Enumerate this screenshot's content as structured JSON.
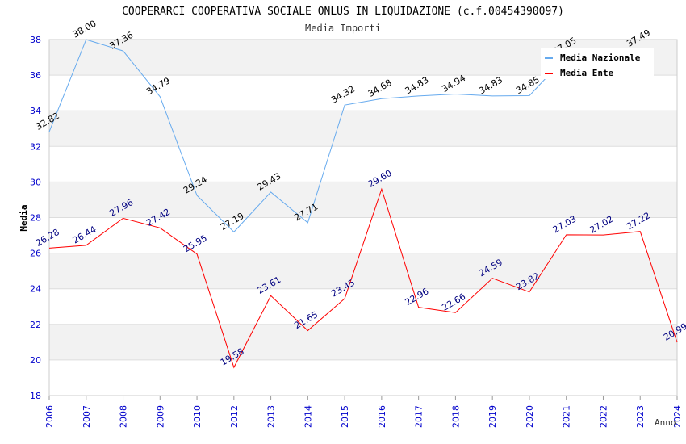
{
  "chart_data": {
    "type": "line",
    "title": "COOPERARCI COOPERATIVA SOCIALE ONLUS IN LIQUIDAZIONE (c.f.00454390097)",
    "subtitle": "Media Importi",
    "xlabel": "Anno",
    "ylabel": "Media",
    "ylim": [
      18,
      38
    ],
    "yticks": [
      "18",
      "20",
      "22",
      "24",
      "26",
      "28",
      "30",
      "32",
      "34",
      "36",
      "38"
    ],
    "x": [
      "2006",
      "2007",
      "2008",
      "2009",
      "2010",
      "2012",
      "2013",
      "2014",
      "2015",
      "2016",
      "2017",
      "2018",
      "2019",
      "2020",
      "2021",
      "2022",
      "2023",
      "2024"
    ],
    "legend_position": "top-right",
    "series": [
      {
        "name": "Media Nazionale",
        "color": "#66aaee",
        "label_color": "#000000",
        "values": [
          32.82,
          38.0,
          37.36,
          34.79,
          29.24,
          27.19,
          29.43,
          27.71,
          34.32,
          34.68,
          34.83,
          34.94,
          34.83,
          34.85,
          37.05,
          37.3,
          37.49,
          null
        ],
        "labels": [
          "32.82",
          "38.00",
          "37.36",
          "34.79",
          "29.24",
          "27.19",
          "29.43",
          "27.71",
          "34.32",
          "34.68",
          "34.83",
          "34.94",
          "34.83",
          "34.85",
          "37.05",
          "",
          "37.49",
          ""
        ]
      },
      {
        "name": "Media Ente",
        "color": "#ff0000",
        "label_color": "#000080",
        "values": [
          26.28,
          26.44,
          27.96,
          27.42,
          25.95,
          19.58,
          23.61,
          21.65,
          23.45,
          29.6,
          22.96,
          22.66,
          24.59,
          23.82,
          27.03,
          27.02,
          27.22,
          20.99
        ],
        "labels": [
          "26.28",
          "26.44",
          "27.96",
          "27.42",
          "25.95",
          "19.58",
          "23.61",
          "21.65",
          "23.45",
          "29.60",
          "22.96",
          "22.66",
          "24.59",
          "23.82",
          "27.03",
          "27.02",
          "27.22",
          "20.99"
        ]
      }
    ]
  }
}
